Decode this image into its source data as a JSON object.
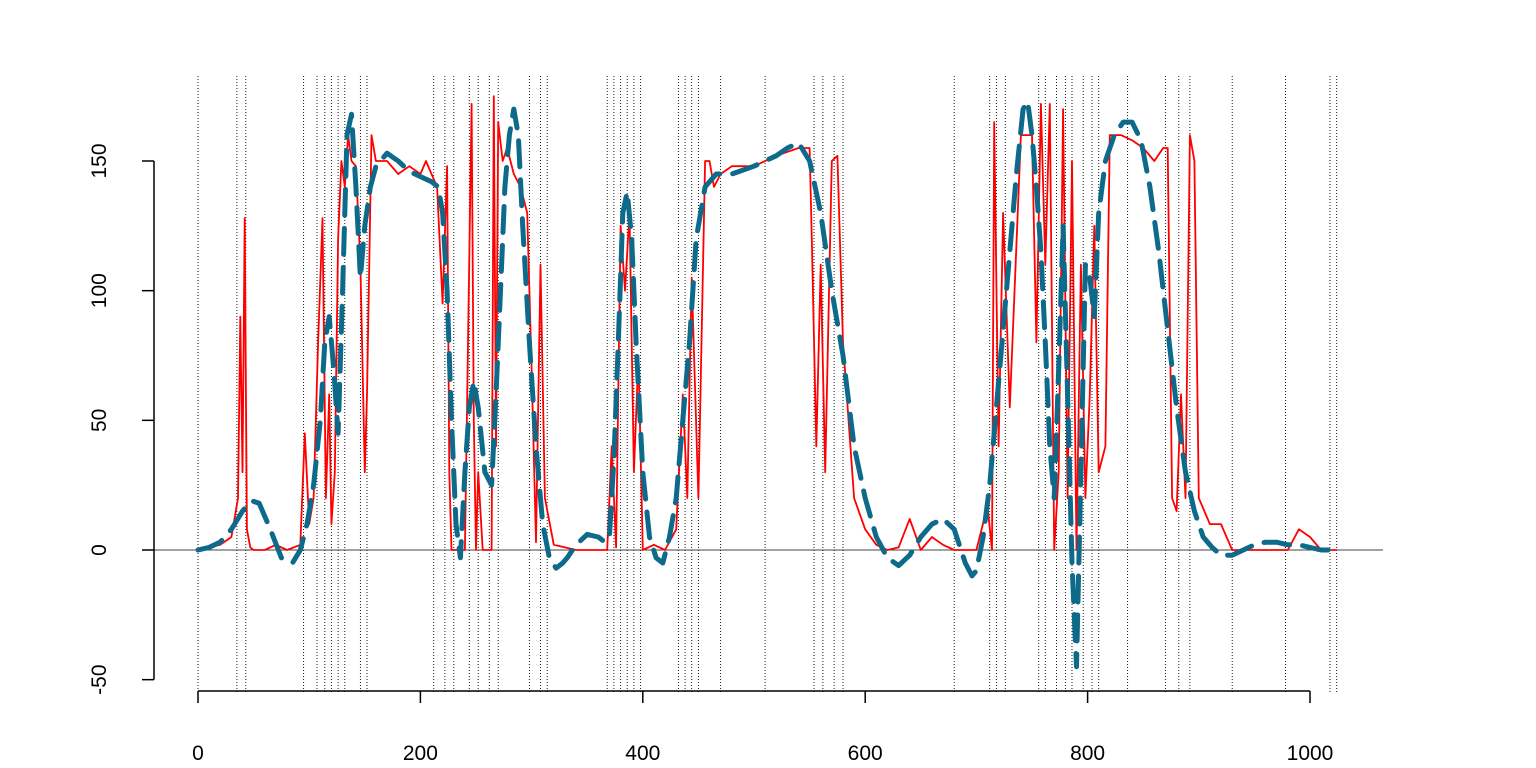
{
  "chart_data": {
    "type": "line",
    "title": "",
    "xlabel": "",
    "ylabel": "",
    "xlim": [
      0,
      1050
    ],
    "ylim": [
      -50,
      175
    ],
    "x_ticks": [
      0,
      200,
      400,
      600,
      800,
      1000
    ],
    "y_ticks": [
      -50,
      0,
      50,
      100,
      150
    ],
    "x_tick_labels": [
      "0",
      "200",
      "400",
      "600",
      "800",
      "1000"
    ],
    "y_tick_labels": [
      "-50",
      "0",
      "50",
      "100",
      "150"
    ],
    "grid": false,
    "legend": "none",
    "reference_line_y": 0,
    "vertical_markers_x": [
      0,
      35,
      43,
      95,
      107,
      114,
      120,
      126,
      132,
      146,
      152,
      212,
      222,
      230,
      244,
      252,
      262,
      270,
      298,
      308,
      314,
      368,
      374,
      380,
      386,
      392,
      398,
      432,
      438,
      444,
      450,
      470,
      510,
      554,
      562,
      572,
      580,
      680,
      712,
      718,
      726,
      756,
      762,
      772,
      780,
      786,
      796,
      804,
      810,
      836,
      870,
      882,
      892,
      930,
      978,
      1018,
      1024
    ],
    "series": [
      {
        "style": "solid",
        "color": "#ff0000",
        "x": [
          0,
          20,
          30,
          36,
          38,
          40,
          42,
          44,
          47,
          50,
          60,
          70,
          80,
          92,
          96,
          100,
          104,
          108,
          112,
          115,
          118,
          120,
          123,
          126,
          129,
          132,
          135,
          138,
          142,
          146,
          150,
          152,
          156,
          160,
          170,
          180,
          190,
          200,
          205,
          210,
          215,
          220,
          224,
          226,
          228,
          232,
          240,
          246,
          248,
          250,
          252,
          256,
          260,
          264,
          266,
          268,
          270,
          274,
          278,
          284,
          290,
          296,
          300,
          304,
          308,
          312,
          320,
          340,
          360,
          368,
          372,
          376,
          380,
          384,
          388,
          392,
          396,
          400,
          410,
          420,
          430,
          436,
          440,
          444,
          450,
          456,
          460,
          464,
          470,
          480,
          500,
          520,
          540,
          550,
          552,
          556,
          560,
          564,
          570,
          575,
          580,
          590,
          600,
          610,
          620,
          630,
          640,
          650,
          660,
          670,
          680,
          690,
          700,
          710,
          714,
          716,
          720,
          724,
          730,
          740,
          750,
          754,
          758,
          762,
          766,
          770,
          774,
          778,
          782,
          786,
          790,
          794,
          798,
          802,
          806,
          810,
          816,
          820,
          830,
          840,
          850,
          860,
          868,
          872,
          876,
          880,
          884,
          888,
          892,
          896,
          900,
          910,
          920,
          930,
          950,
          980,
          990,
          1000,
          1010,
          1020,
          1024
        ],
        "y": [
          0,
          2,
          5,
          20,
          90,
          30,
          128,
          8,
          1,
          0,
          0,
          2,
          0,
          2,
          45,
          10,
          20,
          80,
          128,
          20,
          60,
          10,
          30,
          120,
          150,
          140,
          160,
          150,
          148,
          110,
          30,
          60,
          160,
          150,
          150,
          145,
          148,
          145,
          150,
          145,
          140,
          95,
          148,
          30,
          0,
          0,
          0,
          172,
          50,
          0,
          30,
          0,
          0,
          0,
          175,
          40,
          165,
          150,
          155,
          145,
          140,
          130,
          70,
          3,
          110,
          20,
          2,
          0,
          0,
          0,
          40,
          1,
          125,
          100,
          130,
          30,
          75,
          0,
          2,
          0,
          8,
          60,
          20,
          105,
          20,
          150,
          150,
          140,
          145,
          148,
          148,
          152,
          155,
          155,
          120,
          40,
          110,
          30,
          150,
          152,
          80,
          20,
          8,
          2,
          0,
          1,
          12,
          0,
          5,
          2,
          0,
          0,
          0,
          17,
          0,
          165,
          40,
          130,
          55,
          160,
          160,
          80,
          172,
          110,
          172,
          0,
          30,
          170,
          20,
          150,
          0,
          110,
          20,
          60,
          125,
          30,
          40,
          160,
          160,
          158,
          155,
          150,
          155,
          155,
          20,
          15,
          60,
          20,
          160,
          150,
          20,
          10,
          10,
          0,
          0,
          0,
          8,
          5,
          0,
          0,
          0
        ]
      },
      {
        "style": "dashed",
        "color": "#0e6a8a",
        "x": [
          0,
          10,
          20,
          30,
          40,
          48,
          55,
          65,
          75,
          85,
          92,
          98,
          104,
          110,
          114,
          118,
          122,
          126,
          130,
          134,
          138,
          142,
          146,
          150,
          155,
          160,
          170,
          180,
          190,
          200,
          210,
          216,
          220,
          224,
          228,
          232,
          236,
          240,
          244,
          248,
          252,
          258,
          264,
          268,
          272,
          276,
          280,
          284,
          288,
          292,
          298,
          304,
          310,
          316,
          322,
          328,
          332,
          340,
          350,
          360,
          366,
          370,
          374,
          378,
          382,
          386,
          390,
          394,
          400,
          406,
          412,
          418,
          424,
          430,
          436,
          442,
          448,
          456,
          466,
          480,
          500,
          520,
          530,
          540,
          550,
          560,
          570,
          580,
          590,
          600,
          610,
          620,
          630,
          640,
          650,
          660,
          670,
          680,
          690,
          696,
          700,
          706,
          712,
          718,
          724,
          730,
          736,
          742,
          746,
          750,
          754,
          758,
          762,
          766,
          770,
          774,
          778,
          782,
          786,
          790,
          794,
          798,
          802,
          806,
          810,
          816,
          824,
          832,
          840,
          848,
          856,
          864,
          872,
          880,
          888,
          896,
          904,
          912,
          920,
          930,
          940,
          950,
          960,
          970,
          980,
          990,
          1000,
          1010,
          1024
        ],
        "y": [
          0,
          1,
          3,
          8,
          15,
          19,
          18,
          8,
          -3,
          -5,
          0,
          10,
          25,
          50,
          80,
          90,
          70,
          45,
          100,
          160,
          168,
          140,
          105,
          125,
          140,
          148,
          153,
          150,
          146,
          144,
          142,
          140,
          130,
          100,
          50,
          10,
          -3,
          30,
          55,
          65,
          55,
          30,
          25,
          60,
          100,
          140,
          160,
          170,
          160,
          125,
          80,
          40,
          10,
          -3,
          -7,
          -5,
          -3,
          2,
          6,
          5,
          3,
          5,
          35,
          80,
          130,
          138,
          120,
          80,
          30,
          5,
          -3,
          -5,
          5,
          20,
          50,
          80,
          120,
          140,
          145,
          145,
          148,
          152,
          155,
          157,
          150,
          130,
          100,
          75,
          40,
          20,
          5,
          -3,
          -6,
          -2,
          5,
          10,
          12,
          8,
          -5,
          -10,
          -8,
          5,
          25,
          55,
          85,
          115,
          145,
          170,
          173,
          160,
          140,
          115,
          80,
          40,
          20,
          70,
          125,
          60,
          -5,
          -45,
          30,
          110,
          105,
          90,
          130,
          150,
          160,
          165,
          165,
          158,
          140,
          115,
          85,
          55,
          30,
          15,
          5,
          1,
          -2,
          -2,
          0,
          2,
          3,
          3,
          2,
          2,
          1,
          0,
          0
        ]
      }
    ]
  }
}
